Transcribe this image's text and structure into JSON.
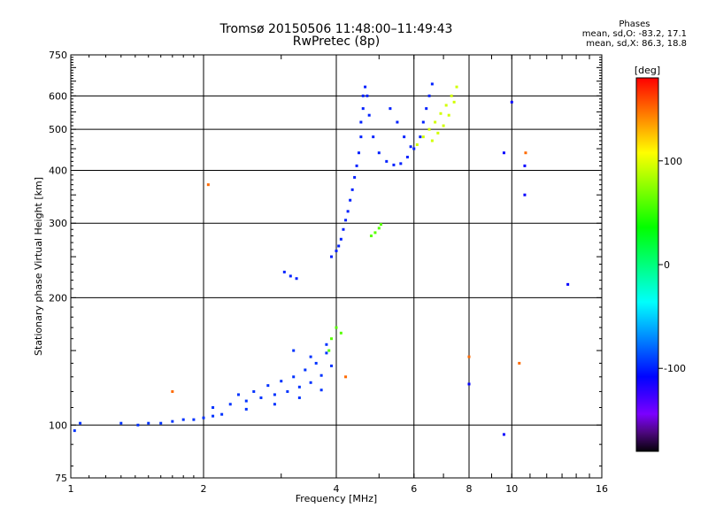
{
  "header": {
    "title_line1": "Tromsø 20150506 11:48:00–11:49:43",
    "title_line2": "RwPretec (8p)"
  },
  "phases": {
    "heading": "Phases",
    "o_mode": "mean, sd,O: -83.2, 17.1",
    "x_mode": "mean, sd,X:  86.3, 18.8"
  },
  "colorbar": {
    "label": "[deg]",
    "ticks": [
      {
        "value": 100,
        "label": "100"
      },
      {
        "value": 0,
        "label": "0"
      },
      {
        "value": -100,
        "label": "-100"
      }
    ],
    "range": [
      -180,
      180
    ]
  },
  "chart_data": {
    "type": "scatter",
    "xlabel": "Frequency [MHz]",
    "ylabel": "Stationary phase Virtual Height [km]",
    "x_scale": "log",
    "y_scale": "log",
    "xlim": [
      1,
      16
    ],
    "ylim": [
      75,
      750
    ],
    "x_ticks": [
      1,
      2,
      4,
      6,
      8,
      10,
      16
    ],
    "y_ticks": [
      75,
      100,
      200,
      300,
      400,
      500,
      600,
      750
    ],
    "major_grid_x": [
      2,
      4,
      6,
      8,
      10
    ],
    "major_grid_y": [
      100,
      200,
      300,
      400,
      500,
      600
    ],
    "color_scale": "rainbow phase (deg)",
    "series": [
      {
        "name": "",
        "phase": -95,
        "points": [
          [
            1.02,
            97
          ],
          [
            1.05,
            101
          ],
          [
            1.3,
            101
          ],
          [
            1.42,
            100
          ],
          [
            1.5,
            101
          ],
          [
            1.6,
            101
          ],
          [
            1.7,
            102
          ],
          [
            1.8,
            103
          ],
          [
            1.9,
            103
          ],
          [
            2.0,
            104
          ],
          [
            2.1,
            105
          ],
          [
            2.2,
            106
          ],
          [
            2.1,
            110
          ],
          [
            2.3,
            112
          ],
          [
            2.5,
            114
          ],
          [
            2.7,
            116
          ],
          [
            2.9,
            118
          ],
          [
            3.1,
            120
          ],
          [
            3.3,
            123
          ],
          [
            3.5,
            126
          ],
          [
            3.7,
            131
          ],
          [
            3.9,
            138
          ],
          [
            2.4,
            118
          ],
          [
            2.6,
            120
          ],
          [
            2.8,
            124
          ],
          [
            3.0,
            127
          ],
          [
            3.2,
            130
          ],
          [
            3.4,
            135
          ],
          [
            3.6,
            140
          ],
          [
            3.8,
            148
          ],
          [
            2.5,
            109
          ],
          [
            2.9,
            112
          ],
          [
            3.3,
            116
          ],
          [
            3.7,
            121
          ],
          [
            3.2,
            150
          ],
          [
            3.5,
            145
          ],
          [
            3.8,
            155
          ]
        ]
      },
      {
        "name": "",
        "phase": -100,
        "points": [
          [
            3.9,
            250
          ],
          [
            4.0,
            258
          ],
          [
            4.05,
            265
          ],
          [
            4.1,
            275
          ],
          [
            4.15,
            290
          ],
          [
            4.2,
            305
          ],
          [
            4.25,
            320
          ],
          [
            4.3,
            340
          ],
          [
            4.35,
            360
          ],
          [
            4.4,
            385
          ],
          [
            4.45,
            410
          ],
          [
            4.5,
            440
          ],
          [
            4.55,
            480
          ],
          [
            4.55,
            520
          ],
          [
            4.6,
            560
          ],
          [
            4.6,
            600
          ],
          [
            4.65,
            630
          ],
          [
            4.7,
            600
          ],
          [
            4.75,
            540
          ],
          [
            4.85,
            480
          ],
          [
            5.0,
            440
          ],
          [
            5.2,
            420
          ],
          [
            5.4,
            412
          ],
          [
            5.6,
            415
          ],
          [
            5.8,
            430
          ],
          [
            6.0,
            450
          ],
          [
            6.2,
            480
          ],
          [
            6.3,
            520
          ],
          [
            6.4,
            560
          ],
          [
            6.5,
            600
          ],
          [
            6.6,
            640
          ],
          [
            5.3,
            560
          ],
          [
            5.5,
            520
          ],
          [
            5.7,
            480
          ],
          [
            5.9,
            455
          ],
          [
            3.05,
            230
          ],
          [
            3.15,
            225
          ],
          [
            3.25,
            222
          ]
        ]
      },
      {
        "name": "",
        "phase": 95,
        "points": [
          [
            6.1,
            460
          ],
          [
            6.3,
            480
          ],
          [
            6.5,
            500
          ],
          [
            6.7,
            520
          ],
          [
            6.9,
            545
          ],
          [
            7.1,
            570
          ],
          [
            7.3,
            600
          ],
          [
            7.5,
            630
          ],
          [
            6.6,
            470
          ],
          [
            6.8,
            490
          ],
          [
            7.0,
            510
          ],
          [
            7.2,
            540
          ],
          [
            7.4,
            580
          ]
        ]
      },
      {
        "name": "",
        "phase": 60,
        "points": [
          [
            4.8,
            280
          ],
          [
            4.9,
            285
          ],
          [
            5.0,
            292
          ],
          [
            5.05,
            298
          ],
          [
            4.0,
            170
          ],
          [
            4.1,
            165
          ],
          [
            3.9,
            160
          ],
          [
            3.85,
            150
          ]
        ]
      },
      {
        "name": "",
        "phase": -110,
        "points": [
          [
            9.6,
            440
          ],
          [
            10.7,
            350
          ],
          [
            10.7,
            410
          ],
          [
            10.0,
            580
          ],
          [
            13.4,
            215
          ],
          [
            9.6,
            95
          ],
          [
            8.0,
            125
          ]
        ]
      },
      {
        "name": "",
        "phase": 150,
        "points": [
          [
            2.05,
            370
          ],
          [
            1.7,
            120
          ],
          [
            4.2,
            130
          ],
          [
            10.4,
            140
          ],
          [
            8.0,
            145
          ],
          [
            10.75,
            440
          ]
        ]
      }
    ]
  }
}
